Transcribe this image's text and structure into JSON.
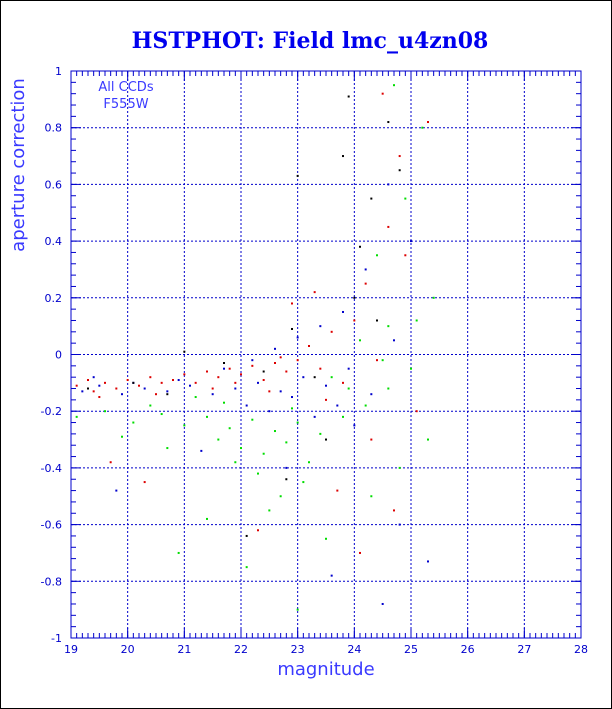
{
  "colors": {
    "axis": "#0000cc",
    "grid": "#0000cc",
    "title": "#0000ee",
    "label": "#3a3aff",
    "series_red": "#dd0000",
    "series_blue": "#0000cc",
    "series_green": "#00dd00",
    "series_black": "#000000"
  },
  "chart_data": {
    "type": "scatter",
    "title": "HSTPHOT: Field lmc_u4zn08",
    "xlabel": "magnitude",
    "ylabel": "aperture correction",
    "xlim": [
      19,
      28
    ],
    "ylim": [
      -1,
      1
    ],
    "x_ticks": [
      19,
      20,
      21,
      22,
      23,
      24,
      25,
      26,
      27,
      28
    ],
    "y_ticks": [
      -1,
      -0.8,
      -0.6,
      -0.4,
      -0.2,
      0,
      0.2,
      0.4,
      0.6,
      0.8,
      1
    ],
    "x_tick_labels": [
      "19",
      "20",
      "21",
      "22",
      "23",
      "24",
      "25",
      "26",
      "27",
      "28"
    ],
    "y_tick_labels": [
      "-1",
      "-0.8",
      "-0.6",
      "-0.4",
      "-0.2",
      "0",
      "0.2",
      "0.4",
      "0.6",
      "0.8",
      "1"
    ],
    "grid": true,
    "annotations": [
      "All CCDs",
      "F555W"
    ],
    "series": [
      {
        "color": "red",
        "points": [
          [
            19.1,
            -0.11
          ],
          [
            19.3,
            -0.09
          ],
          [
            19.4,
            -0.13
          ],
          [
            19.6,
            -0.1
          ],
          [
            19.8,
            -0.12
          ],
          [
            20.0,
            -0.09
          ],
          [
            20.2,
            -0.11
          ],
          [
            20.4,
            -0.08
          ],
          [
            20.6,
            -0.1
          ],
          [
            20.8,
            -0.09
          ],
          [
            21.0,
            -0.07
          ],
          [
            21.2,
            -0.1
          ],
          [
            21.4,
            -0.06
          ],
          [
            21.6,
            -0.08
          ],
          [
            21.8,
            -0.05
          ],
          [
            22.0,
            -0.07
          ],
          [
            22.2,
            -0.04
          ],
          [
            22.4,
            -0.09
          ],
          [
            22.6,
            -0.03
          ],
          [
            22.8,
            -0.06
          ],
          [
            23.0,
            -0.02
          ],
          [
            23.2,
            0.03
          ],
          [
            23.4,
            -0.05
          ],
          [
            23.6,
            0.08
          ],
          [
            23.8,
            -0.1
          ],
          [
            24.0,
            0.12
          ],
          [
            24.2,
            0.25
          ],
          [
            24.4,
            -0.02
          ],
          [
            24.6,
            0.45
          ],
          [
            24.8,
            0.7
          ],
          [
            19.5,
            -0.15
          ],
          [
            20.5,
            -0.14
          ],
          [
            21.5,
            -0.12
          ],
          [
            22.5,
            -0.13
          ],
          [
            23.5,
            -0.16
          ],
          [
            24.3,
            -0.3
          ],
          [
            24.7,
            -0.55
          ],
          [
            25.1,
            -0.2
          ],
          [
            25.3,
            0.82
          ],
          [
            24.5,
            0.92
          ],
          [
            19.7,
            -0.38
          ],
          [
            20.3,
            -0.45
          ],
          [
            22.3,
            -0.62
          ],
          [
            23.7,
            -0.48
          ],
          [
            24.1,
            -0.7
          ],
          [
            22.9,
            0.18
          ],
          [
            23.3,
            0.22
          ],
          [
            24.9,
            0.35
          ],
          [
            21.9,
            -0.1
          ],
          [
            22.7,
            -0.01
          ]
        ]
      },
      {
        "color": "blue",
        "points": [
          [
            19.2,
            -0.13
          ],
          [
            19.5,
            -0.11
          ],
          [
            19.9,
            -0.14
          ],
          [
            20.3,
            -0.12
          ],
          [
            20.7,
            -0.13
          ],
          [
            21.1,
            -0.11
          ],
          [
            21.5,
            -0.14
          ],
          [
            21.9,
            -0.12
          ],
          [
            22.3,
            -0.1
          ],
          [
            22.7,
            -0.13
          ],
          [
            23.1,
            -0.08
          ],
          [
            23.5,
            -0.11
          ],
          [
            23.9,
            -0.05
          ],
          [
            24.3,
            -0.14
          ],
          [
            24.7,
            0.05
          ],
          [
            22.1,
            -0.18
          ],
          [
            22.5,
            -0.2
          ],
          [
            22.9,
            -0.15
          ],
          [
            23.3,
            -0.22
          ],
          [
            23.7,
            -0.18
          ],
          [
            19.8,
            -0.48
          ],
          [
            21.3,
            -0.34
          ],
          [
            22.8,
            -0.4
          ],
          [
            23.6,
            -0.78
          ],
          [
            24.5,
            -0.88
          ],
          [
            24.8,
            -0.6
          ],
          [
            25.3,
            -0.73
          ],
          [
            24.2,
            0.3
          ],
          [
            23.8,
            0.15
          ],
          [
            24.6,
            0.6
          ],
          [
            21.7,
            -0.05
          ],
          [
            22.2,
            -0.02
          ],
          [
            22.6,
            0.02
          ],
          [
            23.0,
            0.06
          ],
          [
            23.4,
            0.1
          ],
          [
            20.9,
            -0.09
          ],
          [
            20.1,
            -0.1
          ],
          [
            19.4,
            -0.08
          ],
          [
            24.0,
            -0.25
          ],
          [
            25.0,
            0.4
          ]
        ]
      },
      {
        "color": "green",
        "points": [
          [
            19.1,
            -0.22
          ],
          [
            19.6,
            -0.2
          ],
          [
            20.1,
            -0.24
          ],
          [
            20.6,
            -0.21
          ],
          [
            21.0,
            -0.25
          ],
          [
            21.4,
            -0.22
          ],
          [
            21.8,
            -0.26
          ],
          [
            22.2,
            -0.23
          ],
          [
            22.6,
            -0.27
          ],
          [
            23.0,
            -0.24
          ],
          [
            23.4,
            -0.28
          ],
          [
            23.8,
            -0.22
          ],
          [
            24.2,
            -0.18
          ],
          [
            24.6,
            -0.12
          ],
          [
            25.0,
            -0.05
          ],
          [
            21.6,
            -0.3
          ],
          [
            22.0,
            -0.33
          ],
          [
            22.4,
            -0.35
          ],
          [
            22.8,
            -0.31
          ],
          [
            23.2,
            -0.38
          ],
          [
            20.9,
            -0.7
          ],
          [
            21.4,
            -0.58
          ],
          [
            22.1,
            -0.75
          ],
          [
            22.5,
            -0.55
          ],
          [
            23.0,
            -0.9
          ],
          [
            23.5,
            -0.65
          ],
          [
            24.3,
            -0.5
          ],
          [
            24.8,
            -0.4
          ],
          [
            25.3,
            -0.3
          ],
          [
            24.6,
            0.1
          ],
          [
            24.4,
            0.35
          ],
          [
            24.9,
            0.55
          ],
          [
            25.2,
            0.8
          ],
          [
            24.7,
            0.95
          ],
          [
            25.4,
            0.2
          ],
          [
            21.2,
            -0.15
          ],
          [
            21.7,
            -0.17
          ],
          [
            22.9,
            -0.19
          ],
          [
            23.6,
            -0.08
          ],
          [
            20.4,
            -0.18
          ],
          [
            19.9,
            -0.29
          ],
          [
            20.7,
            -0.33
          ],
          [
            22.3,
            -0.42
          ],
          [
            23.1,
            -0.45
          ],
          [
            23.9,
            -0.12
          ],
          [
            24.1,
            0.05
          ],
          [
            24.5,
            -0.02
          ],
          [
            25.1,
            0.12
          ],
          [
            22.7,
            -0.5
          ],
          [
            21.9,
            -0.38
          ]
        ]
      },
      {
        "color": "black",
        "points": [
          [
            19.3,
            -0.12
          ],
          [
            20.1,
            -0.1
          ],
          [
            21.0,
            0.01
          ],
          [
            21.7,
            -0.03
          ],
          [
            22.4,
            -0.06
          ],
          [
            23.0,
            0.63
          ],
          [
            23.3,
            -0.08
          ],
          [
            23.8,
            0.7
          ],
          [
            23.9,
            0.91
          ],
          [
            24.1,
            0.38
          ],
          [
            24.3,
            0.55
          ],
          [
            24.6,
            0.82
          ],
          [
            22.1,
            -0.64
          ],
          [
            22.8,
            -0.44
          ],
          [
            23.5,
            -0.3
          ],
          [
            24.0,
            0.2
          ],
          [
            24.4,
            0.12
          ],
          [
            24.8,
            0.65
          ],
          [
            20.7,
            -0.14
          ],
          [
            22.9,
            0.09
          ]
        ]
      }
    ]
  }
}
